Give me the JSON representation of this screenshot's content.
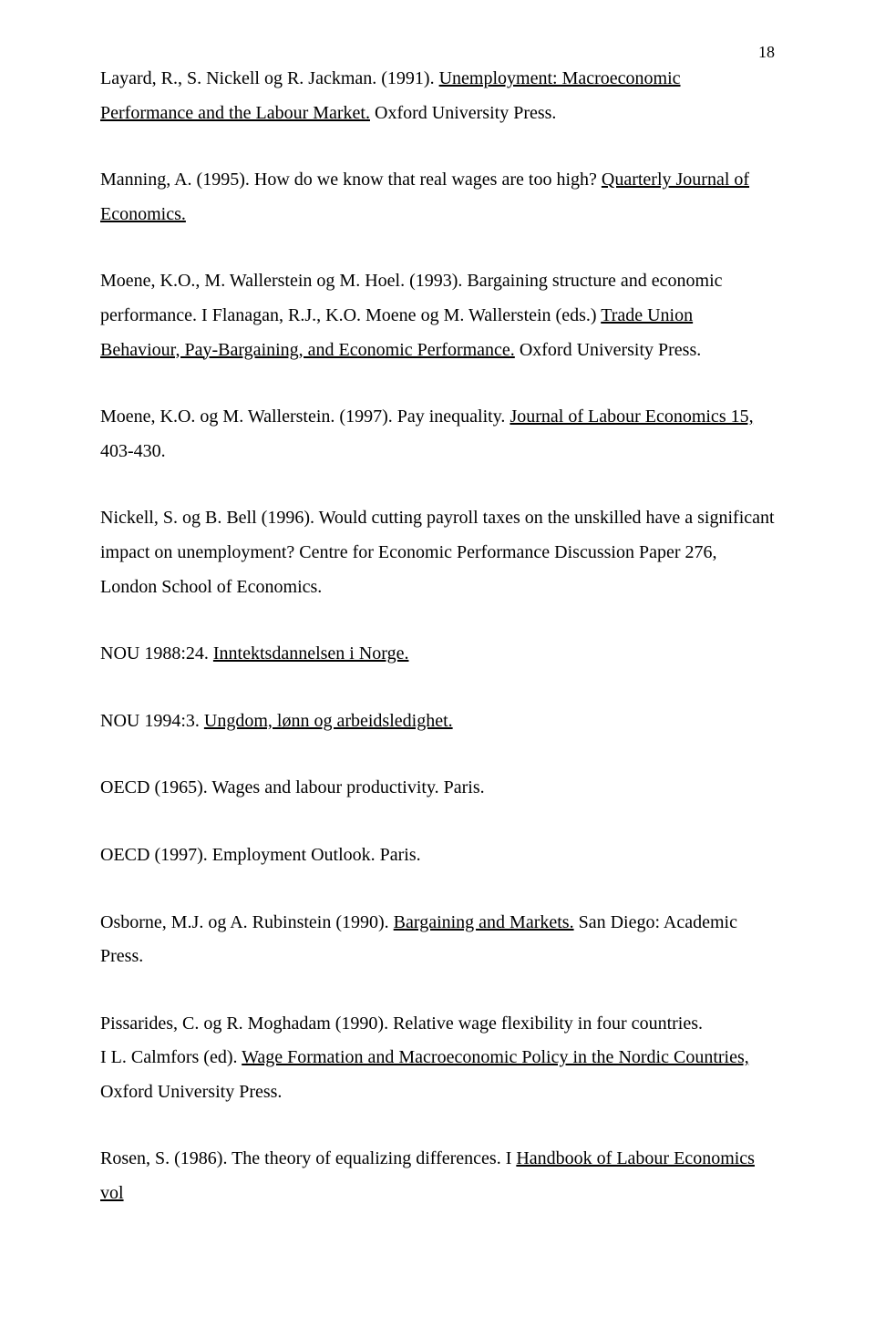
{
  "pageNumber": "18",
  "r1_a": "Layard, R., S. Nickell og R. Jackman. (1991). ",
  "r1_b": "Unemployment: Macroeconomic Performance and the Labour Market.",
  "r1_c": " Oxford University Press.",
  "r2_a": "Manning, A. (1995). How do we know that real wages are too high? ",
  "r2_b": "Quarterly Journal of Economics.",
  "r3_a": "Moene, K.O., M. Wallerstein og M. Hoel. (1993). Bargaining structure and economic performance. I Flanagan, R.J., K.O. Moene og M. Wallerstein (eds.) ",
  "r3_b": "Trade Union Behaviour, Pay-Bargaining, and Economic Performance.",
  "r3_c": " Oxford University Press.",
  "r4_a": "Moene, K.O. og M. Wallerstein. (1997). Pay inequality. ",
  "r4_b": "Journal of Labour Economics 15,",
  "r4_c": " 403-430.",
  "r5_a": "Nickell, S. og B. Bell (1996). Would cutting payroll taxes on the unskilled have a significant impact on unemployment? Centre for Economic Performance Discussion Paper 276, London School of Economics.",
  "r6_a": "NOU 1988:24. ",
  "r6_b": "Inntektsdannelsen i Norge.",
  "r7_a": "NOU 1994:3. ",
  "r7_b": "Ungdom, lønn og arbeidsledighet.",
  "r8_a": "OECD (1965). Wages and labour productivity. Paris.",
  "r9_a": "OECD (1997). Employment Outlook. Paris.",
  "r10_a": "Osborne, M.J. og A. Rubinstein (1990). ",
  "r10_b": "Bargaining and Markets.",
  "r10_c": " San Diego: Academic Press.",
  "r11_a": "Pissarides, C. og R. Moghadam (1990). Relative wage flexibility in four countries.",
  "r11_b": "I L. Calmfors (ed). ",
  "r11_c": "Wage Formation and Macroeconomic Policy in the Nordic Countries,",
  "r11_d": " Oxford University Press.",
  "r12_a": "Rosen, S. (1986). The theory of equalizing differences. I ",
  "r12_b": "Handbook of Labour Economics vol"
}
